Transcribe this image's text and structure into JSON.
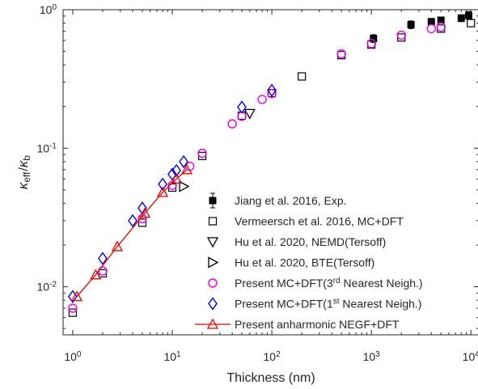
{
  "chart_data": {
    "type": "scatter",
    "xscale": "log",
    "yscale": "log",
    "xlim": [
      0.8,
      12000
    ],
    "ylim": [
      0.0045,
      1
    ],
    "xlabel": "Thickness (nm)",
    "ylabel": {
      "kappa": "κ",
      "eff": "eff",
      "slash": "/",
      "b": "b"
    },
    "xticks": [
      {
        "value": 1,
        "base": "10",
        "exp": "0"
      },
      {
        "value": 10,
        "base": "10",
        "exp": "1"
      },
      {
        "value": 100,
        "base": "10",
        "exp": "2"
      },
      {
        "value": 1000,
        "base": "10",
        "exp": "3"
      },
      {
        "value": 10000,
        "base": "10",
        "exp": "4"
      }
    ],
    "yticks": [
      {
        "value": 0.01,
        "base": "10",
        "exp": "-2"
      },
      {
        "value": 0.1,
        "base": "10",
        "exp": "-1"
      },
      {
        "value": 1,
        "base": "10",
        "exp": "0"
      }
    ],
    "legend_position": "lower-right",
    "series": [
      {
        "legend": {
          "text": "Jiang et al. 2016, Exp."
        },
        "marker": "filled-square",
        "color": "#000000",
        "errorbars": true,
        "points": [
          [
            1050,
            0.62
          ],
          [
            2500,
            0.78
          ],
          [
            4000,
            0.82
          ],
          [
            5000,
            0.84
          ],
          [
            8000,
            0.87
          ],
          [
            9500,
            0.91
          ]
        ],
        "err": [
          0.04,
          0.05,
          0.04,
          0.04,
          0.05,
          0.06
        ]
      },
      {
        "legend": {
          "text": "Vermeersch et al. 2016, MC+DFT"
        },
        "marker": "open-square",
        "color": "#000000",
        "points": [
          [
            1,
            0.0065
          ],
          [
            2,
            0.0125
          ],
          [
            5,
            0.029
          ],
          [
            10,
            0.052
          ],
          [
            20,
            0.088
          ],
          [
            50,
            0.172
          ],
          [
            100,
            0.25
          ],
          [
            200,
            0.33
          ],
          [
            500,
            0.47
          ],
          [
            1000,
            0.56
          ],
          [
            2000,
            0.63
          ],
          [
            5000,
            0.73
          ],
          [
            10000,
            0.8
          ]
        ]
      },
      {
        "legend": {
          "text": "Hu et al. 2020, NEMD(Tersoff)"
        },
        "marker": "triangle-down",
        "color": "#000000",
        "points": [
          [
            60,
            0.178
          ]
        ]
      },
      {
        "legend": {
          "text": "Hu et al. 2020, BTE(Tersoff)"
        },
        "marker": "triangle-right",
        "color": "#000000",
        "points": [
          [
            13,
            0.053
          ]
        ]
      },
      {
        "legend": {
          "pre": "Present MC+DFT(3",
          "sup": "rd",
          "post": " Nearest Neigh.)"
        },
        "marker": "circle",
        "color": "#ee00ee",
        "points": [
          [
            1,
            0.007
          ],
          [
            2,
            0.013
          ],
          [
            5,
            0.031
          ],
          [
            10,
            0.054
          ],
          [
            15,
            0.074
          ],
          [
            20,
            0.092
          ],
          [
            40,
            0.15
          ],
          [
            50,
            0.17
          ],
          [
            80,
            0.225
          ],
          [
            100,
            0.248
          ],
          [
            500,
            0.48
          ],
          [
            1000,
            0.57
          ],
          [
            2000,
            0.655
          ],
          [
            4000,
            0.73
          ],
          [
            5000,
            0.75
          ]
        ]
      },
      {
        "legend": {
          "pre": "Present MC+DFT(1",
          "sup": "st",
          "post": " Nearest Neigh.)"
        },
        "marker": "diamond",
        "color": "#0000ee",
        "points": [
          [
            1,
            0.0085
          ],
          [
            2,
            0.016
          ],
          [
            4,
            0.03
          ],
          [
            5,
            0.037
          ],
          [
            8,
            0.055
          ],
          [
            10,
            0.065
          ],
          [
            11,
            0.069
          ],
          [
            13,
            0.08
          ],
          [
            50,
            0.198
          ],
          [
            100,
            0.262
          ]
        ]
      },
      {
        "legend": {
          "text": "Present anharmonic NEGF+DFT"
        },
        "marker": "triangle-up",
        "color": "#ee0000",
        "line": true,
        "points": [
          [
            1.1,
            0.0085
          ],
          [
            1.7,
            0.0122
          ],
          [
            2.8,
            0.0195
          ],
          [
            5.3,
            0.034
          ],
          [
            8,
            0.048
          ],
          [
            11,
            0.06
          ],
          [
            14,
            0.07
          ]
        ]
      }
    ]
  }
}
